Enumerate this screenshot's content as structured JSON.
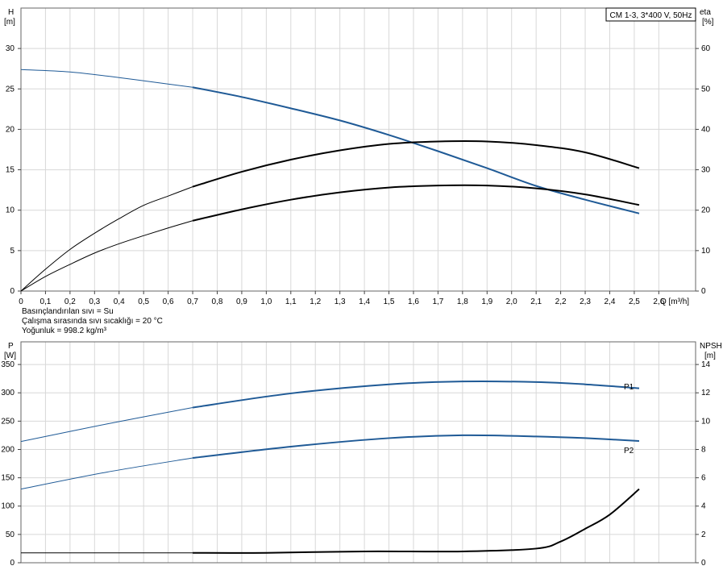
{
  "figure": {
    "model_label": "CM 1-3, 3*400 V, 50Hz",
    "info_lines": [
      "Basınçlandırılan sıvı = Su",
      "Çalışma sırasında sıvı sıcaklığı = 20 °C",
      "Yoğunluk = 998.2 kg/m³"
    ]
  },
  "chart_data": [
    {
      "type": "line",
      "left_axis": {
        "label_line1": "H",
        "label_line2": "[m]",
        "range": [
          0,
          35
        ],
        "ticks": [
          0,
          5,
          10,
          15,
          20,
          25,
          30
        ]
      },
      "right_axis": {
        "label_line1": "eta",
        "label_line2": "[%]",
        "range": [
          0,
          70
        ],
        "ticks": [
          0,
          10,
          20,
          30,
          40,
          50,
          60
        ]
      },
      "x_axis": {
        "label": "Q [m³/h]",
        "range": [
          0,
          2.75
        ],
        "ticks": [
          0,
          0.1,
          0.2,
          0.3,
          0.4,
          0.5,
          0.6,
          0.7,
          0.8,
          0.9,
          1.0,
          1.1,
          1.2,
          1.3,
          1.4,
          1.5,
          1.6,
          1.7,
          1.8,
          1.9,
          2.0,
          2.1,
          2.2,
          2.3,
          2.4,
          2.5,
          2.6
        ],
        "tick_labels": [
          "0",
          "0,1",
          "0,2",
          "0,3",
          "0,4",
          "0,5",
          "0,6",
          "0,7",
          "0,8",
          "0,9",
          "1,0",
          "1,1",
          "1,2",
          "1,3",
          "1,4",
          "1,5",
          "1,6",
          "1,7",
          "1,8",
          "1,9",
          "2,0",
          "2,1",
          "2,2",
          "2,3",
          "2,4",
          "2,5",
          "2,6"
        ]
      },
      "grid": true,
      "series": [
        {
          "axis": "left",
          "color": "#1f5a96",
          "op_start": 0.7,
          "x": [
            0,
            0.2,
            0.4,
            0.6,
            0.7,
            0.9,
            1.1,
            1.3,
            1.5,
            1.7,
            1.9,
            2.1,
            2.3,
            2.52
          ],
          "y": [
            27.4,
            27.1,
            26.4,
            25.6,
            25.2,
            24.0,
            22.6,
            21.1,
            19.3,
            17.3,
            15.2,
            13.0,
            11.3,
            9.6
          ]
        },
        {
          "axis": "right",
          "color": "#000000",
          "op_start": 0.7,
          "x": [
            0,
            0.1,
            0.2,
            0.3,
            0.4,
            0.5,
            0.6,
            0.7,
            0.9,
            1.1,
            1.3,
            1.5,
            1.7,
            1.9,
            2.1,
            2.3,
            2.52
          ],
          "y": [
            0,
            5.4,
            10.3,
            14.3,
            17.9,
            21.2,
            23.5,
            25.8,
            29.5,
            32.5,
            34.8,
            36.4,
            37.0,
            37.0,
            36.1,
            34.3,
            30.4
          ]
        },
        {
          "axis": "right",
          "color": "#000000",
          "op_start": 0.7,
          "x": [
            0,
            0.1,
            0.2,
            0.3,
            0.4,
            0.5,
            0.6,
            0.7,
            0.9,
            1.1,
            1.3,
            1.5,
            1.7,
            1.9,
            2.1,
            2.3,
            2.52
          ],
          "y": [
            0,
            3.6,
            6.6,
            9.4,
            11.7,
            13.7,
            15.6,
            17.4,
            20.2,
            22.6,
            24.4,
            25.6,
            26.1,
            26.1,
            25.4,
            23.9,
            21.3
          ]
        }
      ]
    },
    {
      "type": "line",
      "left_axis": {
        "label_line1": "P",
        "label_line2": "[W]",
        "range": [
          0,
          390
        ],
        "ticks": [
          0,
          50,
          100,
          150,
          200,
          250,
          300,
          350
        ]
      },
      "right_axis": {
        "label_line1": "NPSH",
        "label_line2": "[m]",
        "range": [
          0,
          15.6
        ],
        "ticks": [
          0,
          2,
          4,
          6,
          8,
          10,
          12,
          14
        ]
      },
      "x_axis": {
        "range": [
          0,
          2.75
        ],
        "ticks": [
          0,
          0.1,
          0.2,
          0.3,
          0.4,
          0.5,
          0.6,
          0.7,
          0.8,
          0.9,
          1.0,
          1.1,
          1.2,
          1.3,
          1.4,
          1.5,
          1.6,
          1.7,
          1.8,
          1.9,
          2.0,
          2.1,
          2.2,
          2.3,
          2.4,
          2.5,
          2.6
        ]
      },
      "grid": true,
      "series": [
        {
          "name": "P1",
          "axis": "left",
          "color": "#1f5a96",
          "op_start": 0.7,
          "x": [
            0,
            0.35,
            0.7,
            1.1,
            1.5,
            1.8,
            2.1,
            2.3,
            2.52
          ],
          "y": [
            214,
            245,
            274,
            299,
            315,
            320,
            319,
            315,
            308
          ]
        },
        {
          "name": "P2",
          "axis": "left",
          "color": "#1f5a96",
          "op_start": 0.7,
          "x": [
            0,
            0.35,
            0.7,
            1.1,
            1.5,
            1.8,
            2.1,
            2.3,
            2.52
          ],
          "y": [
            130,
            160,
            185,
            205,
            220,
            225,
            223,
            220,
            215
          ]
        },
        {
          "axis": "right",
          "color": "#000000",
          "op_start": 0.7,
          "x": [
            0,
            0.7,
            1.0,
            1.4,
            1.8,
            2.1,
            2.2,
            2.3,
            2.4,
            2.52
          ],
          "y": [
            0.7,
            0.7,
            0.7,
            0.8,
            0.8,
            1.0,
            1.5,
            2.4,
            3.4,
            5.2
          ]
        }
      ]
    }
  ]
}
